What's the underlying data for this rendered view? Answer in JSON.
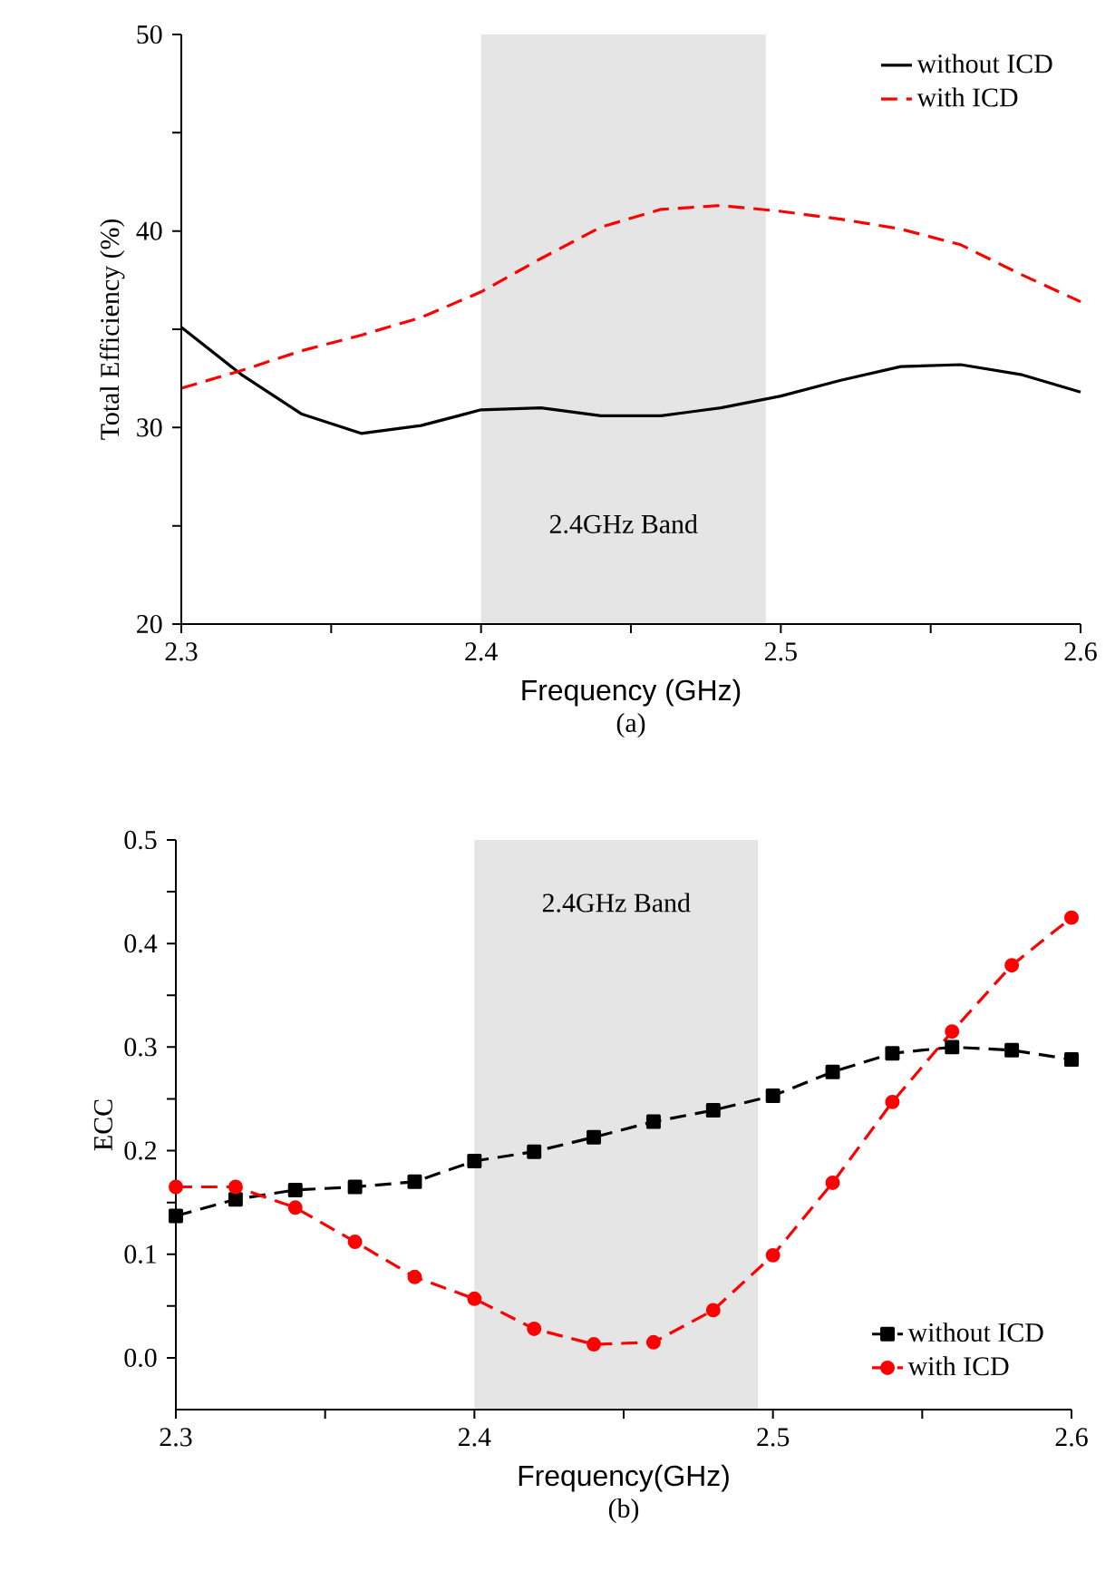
{
  "chart_data": [
    {
      "type": "line",
      "xlabel": "Frequency (GHz)",
      "ylabel": "Total Efficiency (%)",
      "x": [
        2.3,
        2.32,
        2.34,
        2.36,
        2.38,
        2.4,
        2.42,
        2.44,
        2.46,
        2.48,
        2.5,
        2.52,
        2.54,
        2.56,
        2.58,
        2.6
      ],
      "series": [
        {
          "name": "without ICD",
          "color": "#000000",
          "line_style": "solid",
          "values": [
            35.1,
            32.7,
            30.7,
            29.7,
            30.1,
            30.9,
            31.0,
            30.6,
            30.6,
            31.0,
            31.6,
            32.4,
            33.1,
            33.2,
            32.7,
            31.8
          ]
        },
        {
          "name": "with ICD",
          "color": "#ff0000",
          "line_style": "dashed",
          "values": [
            32.0,
            32.9,
            33.9,
            34.7,
            35.6,
            36.9,
            38.6,
            40.2,
            41.1,
            41.3,
            41.0,
            40.6,
            40.1,
            39.3,
            37.8,
            36.4
          ]
        }
      ],
      "xlim": [
        2.3,
        2.6
      ],
      "ylim": [
        20,
        50
      ],
      "xticks": [
        2.3,
        {
          "value": 2.35,
          "label": null
        },
        2.4,
        {
          "value": 2.45,
          "label": null
        },
        2.5,
        {
          "value": 2.55,
          "label": null
        },
        2.6
      ],
      "yticks": [
        20,
        {
          "value": 25,
          "label": null
        },
        30,
        {
          "value": 35,
          "label": null
        },
        40,
        {
          "value": 45,
          "label": null
        },
        50
      ],
      "bands": [
        {
          "axis": "x",
          "from": 2.4,
          "to": 2.495,
          "label": "2.4GHz Band",
          "color": "#e5e5e5"
        }
      ],
      "legend": "top right",
      "annotations": [
        "(a)"
      ]
    },
    {
      "type": "line",
      "xlabel": "Frequency(GHz)",
      "ylabel": "ECC",
      "x": [
        2.3,
        2.32,
        2.34,
        2.36,
        2.38,
        2.4,
        2.42,
        2.44,
        2.46,
        2.48,
        2.5,
        2.52,
        2.54,
        2.56,
        2.58,
        2.6
      ],
      "series": [
        {
          "name": "without ICD",
          "color": "#000000",
          "line_style": "dashed",
          "marker": "square",
          "values": [
            0.137,
            0.153,
            0.162,
            0.165,
            0.17,
            0.19,
            0.199,
            0.213,
            0.228,
            0.239,
            0.253,
            0.276,
            0.294,
            0.3,
            0.297,
            0.288
          ]
        },
        {
          "name": "with ICD",
          "color": "#ff0000",
          "line_style": "dashed",
          "marker": "circle",
          "values": [
            0.165,
            0.165,
            0.145,
            0.112,
            0.078,
            0.057,
            0.028,
            0.013,
            0.015,
            0.046,
            0.099,
            0.169,
            0.247,
            0.315,
            0.379,
            0.425
          ]
        }
      ],
      "xlim": [
        2.3,
        2.6
      ],
      "ylim": [
        -0.05,
        0.5
      ],
      "xticks": [
        2.3,
        {
          "value": 2.35,
          "label": null
        },
        2.4,
        {
          "value": 2.45,
          "label": null
        },
        2.5,
        {
          "value": 2.55,
          "label": null
        },
        2.6
      ],
      "yticks": [
        {
          "value": 0,
          "label": "0.0"
        },
        {
          "value": 0.05,
          "label": null
        },
        0.1,
        {
          "value": 0.15,
          "label": null
        },
        0.2,
        {
          "value": 0.25,
          "label": null
        },
        0.3,
        {
          "value": 0.35,
          "label": null
        },
        0.4,
        {
          "value": 0.45,
          "label": null
        },
        0.5
      ],
      "bands": [
        {
          "axis": "x",
          "from": 2.4,
          "to": 2.495,
          "label": "2.4GHz Band",
          "color": "#e5e5e5"
        }
      ],
      "legend": "bottom right",
      "annotations": [
        "(b)"
      ]
    }
  ]
}
